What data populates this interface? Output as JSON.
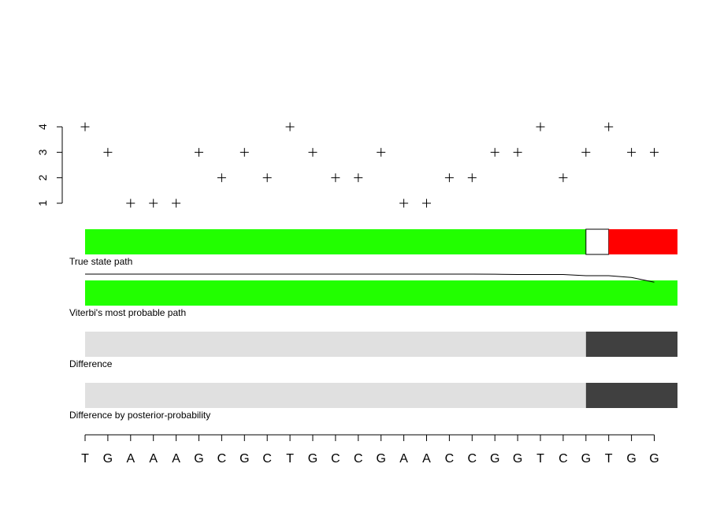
{
  "chart_data": {
    "type": "scatter",
    "title": "",
    "xlabel": "",
    "ylabel": "",
    "x_categories": [
      "T",
      "G",
      "A",
      "A",
      "A",
      "G",
      "C",
      "G",
      "C",
      "T",
      "G",
      "C",
      "C",
      "G",
      "A",
      "A",
      "C",
      "C",
      "G",
      "G",
      "T",
      "C",
      "G",
      "T",
      "G",
      "G"
    ],
    "y_ticks": [
      "1",
      "2",
      "3",
      "4"
    ],
    "ylim": [
      1,
      4
    ],
    "marker": "+",
    "values": [
      4,
      3,
      1,
      1,
      1,
      3,
      2,
      3,
      2,
      4,
      3,
      2,
      2,
      3,
      1,
      1,
      2,
      2,
      3,
      3,
      4,
      2,
      3,
      4,
      3,
      3
    ],
    "tracks": [
      {
        "label": "True state path",
        "segments": [
          {
            "start": 0,
            "end": 22,
            "color": "#22ff00"
          },
          {
            "start": 22,
            "end": 23,
            "color": "#ffffff"
          },
          {
            "start": 23,
            "end": 26,
            "color": "#ff0000"
          }
        ]
      },
      {
        "label": "Viterbi's most probable path",
        "segments": [
          {
            "start": 0,
            "end": 26,
            "color": "#22ff00"
          }
        ]
      },
      {
        "label": "Difference",
        "segments": [
          {
            "start": 0,
            "end": 22,
            "color": "#e0e0e0"
          },
          {
            "start": 22,
            "end": 26,
            "color": "#404040"
          }
        ]
      },
      {
        "label": "Difference by posterior-probability",
        "segments": [
          {
            "start": 0,
            "end": 22,
            "color": "#e0e0e0"
          },
          {
            "start": 22,
            "end": 26,
            "color": "#404040"
          }
        ]
      }
    ],
    "posterior_line": [
      1,
      1,
      1,
      1,
      1,
      1,
      1,
      1,
      1,
      1,
      1,
      1,
      1,
      1,
      1,
      1,
      1,
      1,
      0.99,
      0.97,
      0.97,
      0.97,
      0.88,
      0.88,
      0.75,
      0.4
    ]
  }
}
